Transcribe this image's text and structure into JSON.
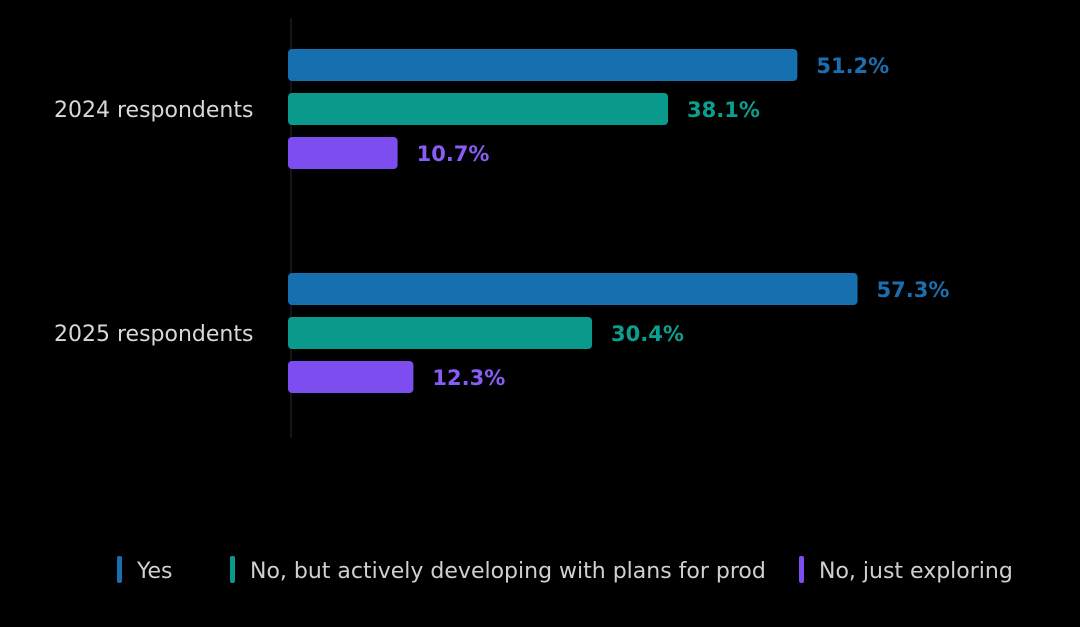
{
  "chart_data": {
    "type": "bar",
    "orientation": "horizontal",
    "categories": [
      "2024 respondents",
      "2025 respondents"
    ],
    "series": [
      {
        "name": "Yes",
        "values": [
          51.2,
          57.3
        ],
        "labels": [
          "51.2%",
          "57.3%"
        ],
        "color": "#1670b0"
      },
      {
        "name": "No, but actively developing with plans for prod",
        "values": [
          38.1,
          30.4
        ],
        "labels": [
          "38.1%",
          "30.4%"
        ],
        "color": "#0a9a8c"
      },
      {
        "name": "No, just exploring",
        "values": [
          10.7,
          12.3
        ],
        "labels": [
          "10.7%",
          "12.3%"
        ],
        "color": "#7d4df0"
      }
    ],
    "xlim": [
      0,
      60
    ],
    "grid": false,
    "legend_position": "bottom",
    "value_label_colors": [
      "#1b6fb0",
      "#0aa090",
      "#8a5cf6"
    ]
  }
}
